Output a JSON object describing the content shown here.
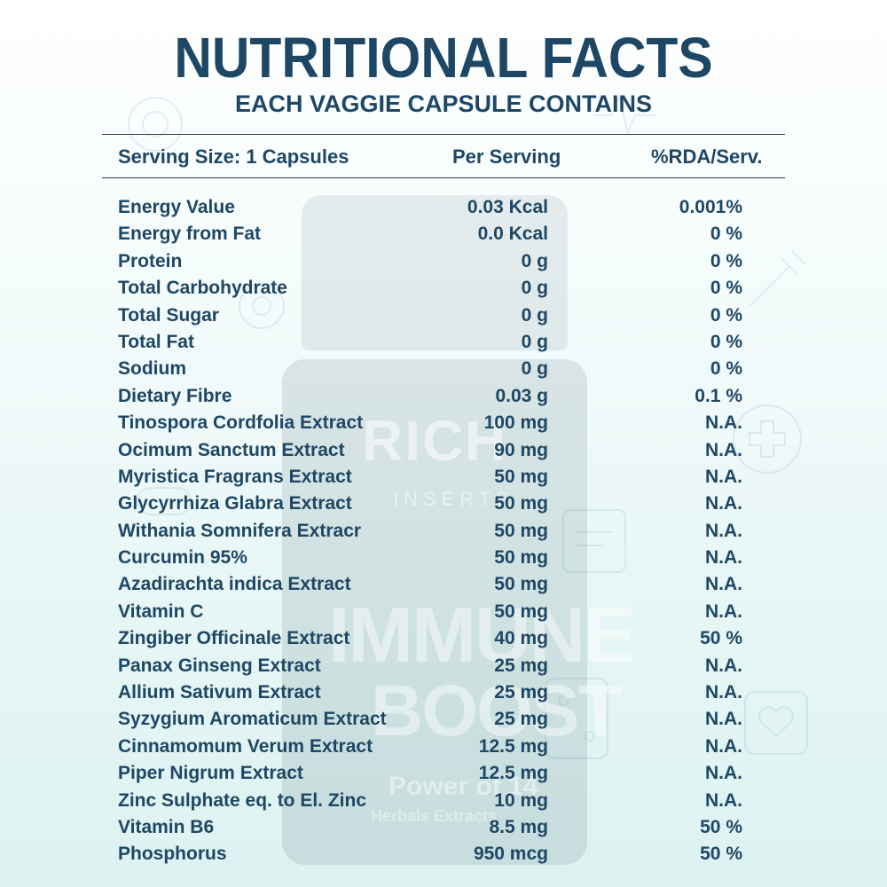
{
  "title": "NUTRITIONAL FACTS",
  "subtitle": "EACH VAGGIE CAPSULE CONTAINS",
  "header": {
    "serving_size": "Serving Size: 1 Capsules",
    "per_serving": "Per Serving",
    "rda": "%RDA/Serv."
  },
  "bottle": {
    "brand": "RICH",
    "brand_sub": "INSERTS",
    "line1": "IMMUNE",
    "line2": "BOOST",
    "power": "Power of 14",
    "herbals": "Herbals Extracts"
  },
  "rows": [
    {
      "name": "Energy Value",
      "per_serving": "0.03 Kcal",
      "rda": "0.001%"
    },
    {
      "name": "Energy from Fat",
      "per_serving": "0.0 Kcal",
      "rda": "0 %"
    },
    {
      "name": "Protein",
      "per_serving": "0 g",
      "rda": "0 %"
    },
    {
      "name": "Total Carbohydrate",
      "per_serving": "0 g",
      "rda": "0 %"
    },
    {
      "name": "Total Sugar",
      "per_serving": "0 g",
      "rda": "0 %"
    },
    {
      "name": "Total Fat",
      "per_serving": "0 g",
      "rda": "0 %"
    },
    {
      "name": "Sodium",
      "per_serving": "0 g",
      "rda": "0 %"
    },
    {
      "name": "Dietary Fibre",
      "per_serving": "0.03 g",
      "rda": "0.1 %"
    },
    {
      "name": "Tinospora Cordfolia Extract",
      "per_serving": "100 mg",
      "rda": "N.A."
    },
    {
      "name": "Ocimum Sanctum Extract",
      "per_serving": "90 mg",
      "rda": "N.A."
    },
    {
      "name": "Myristica Fragrans Extract",
      "per_serving": "50 mg",
      "rda": "N.A."
    },
    {
      "name": "Glycyrrhiza Glabra Extract",
      "per_serving": "50 mg",
      "rda": "N.A."
    },
    {
      "name": "Withania Somnifera Extracr",
      "per_serving": "50 mg",
      "rda": "N.A."
    },
    {
      "name": "Curcumin 95%",
      "per_serving": "50 mg",
      "rda": "N.A."
    },
    {
      "name": "Azadirachta indica Extract",
      "per_serving": "50 mg",
      "rda": "N.A."
    },
    {
      "name": "Vitamin C",
      "per_serving": "50 mg",
      "rda": "N.A."
    },
    {
      "name": "Zingiber Officinale Extract",
      "per_serving": "40 mg",
      "rda": "50 %"
    },
    {
      "name": "Panax Ginseng Extract",
      "per_serving": "25 mg",
      "rda": "N.A."
    },
    {
      "name": "Allium Sativum Extract",
      "per_serving": "25 mg",
      "rda": "N.A."
    },
    {
      "name": "Syzygium Aromaticum Extract",
      "per_serving": "25 mg",
      "rda": "N.A."
    },
    {
      "name": "Cinnamomum Verum Extract",
      "per_serving": "12.5 mg",
      "rda": "N.A."
    },
    {
      "name": "Piper Nigrum Extract",
      "per_serving": "12.5 mg",
      "rda": "N.A."
    },
    {
      "name": "Zinc Sulphate eq. to El. Zinc",
      "per_serving": "10 mg",
      "rda": "N.A."
    },
    {
      "name": "Vitamin B6",
      "per_serving": "8.5 mg",
      "rda": "50 %"
    },
    {
      "name": "Phosphorus",
      "per_serving": "950 mcg",
      "rda": "50 %"
    }
  ]
}
